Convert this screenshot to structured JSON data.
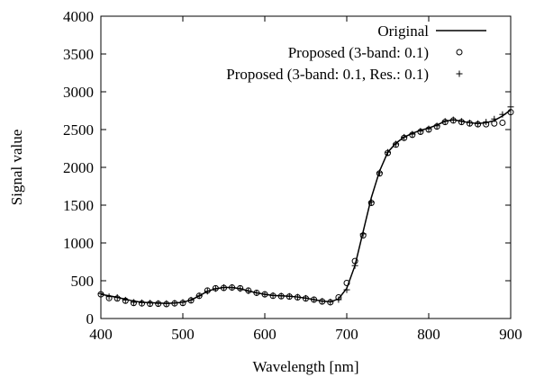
{
  "chart_data": {
    "type": "line",
    "xlabel": "Wavelength [nm]",
    "ylabel": "Signal value",
    "xlim": [
      400,
      900
    ],
    "ylim": [
      0,
      4000
    ],
    "xticks": [
      400,
      500,
      600,
      700,
      800,
      900
    ],
    "yticks": [
      0,
      500,
      1000,
      1500,
      2000,
      2500,
      3000,
      3500,
      4000
    ],
    "grid": false,
    "legend_position": "top-right",
    "series": [
      {
        "name": "Original",
        "style": "line",
        "color": "#000000",
        "x": [
          400,
          410,
          420,
          430,
          440,
          450,
          460,
          470,
          480,
          490,
          500,
          510,
          520,
          530,
          540,
          550,
          560,
          570,
          580,
          590,
          600,
          610,
          620,
          630,
          640,
          650,
          660,
          670,
          680,
          690,
          700,
          710,
          720,
          730,
          740,
          750,
          760,
          770,
          780,
          790,
          800,
          810,
          820,
          830,
          840,
          850,
          860,
          870,
          880,
          890,
          900
        ],
        "y": [
          320,
          300,
          280,
          255,
          230,
          215,
          210,
          205,
          200,
          205,
          215,
          245,
          300,
          360,
          395,
          410,
          410,
          395,
          365,
          340,
          320,
          305,
          300,
          295,
          285,
          270,
          250,
          230,
          220,
          260,
          400,
          700,
          1150,
          1600,
          1950,
          2200,
          2320,
          2400,
          2450,
          2490,
          2520,
          2560,
          2610,
          2630,
          2610,
          2590,
          2580,
          2590,
          2620,
          2680,
          2760
        ]
      },
      {
        "name": "Proposed (3-band: 0.1)",
        "style": "circle",
        "color": "#000000",
        "x": [
          400,
          410,
          420,
          430,
          440,
          450,
          460,
          470,
          480,
          490,
          500,
          510,
          520,
          530,
          540,
          550,
          560,
          570,
          580,
          590,
          600,
          610,
          620,
          630,
          640,
          650,
          660,
          670,
          680,
          690,
          700,
          710,
          720,
          730,
          740,
          750,
          760,
          770,
          780,
          790,
          800,
          810,
          820,
          830,
          840,
          850,
          860,
          870,
          880,
          890,
          900
        ],
        "y": [
          320,
          270,
          265,
          235,
          205,
          200,
          195,
          195,
          190,
          200,
          205,
          240,
          300,
          370,
          400,
          405,
          410,
          400,
          370,
          340,
          320,
          300,
          295,
          290,
          280,
          265,
          250,
          225,
          215,
          280,
          470,
          760,
          1100,
          1530,
          1920,
          2190,
          2300,
          2390,
          2430,
          2470,
          2500,
          2540,
          2600,
          2620,
          2600,
          2580,
          2570,
          2570,
          2580,
          2590,
          2730
        ]
      },
      {
        "name": "Proposed (3-band: 0.1, Res.: 0.1)",
        "style": "plus",
        "color": "#000000",
        "x": [
          400,
          410,
          420,
          430,
          440,
          450,
          460,
          470,
          480,
          490,
          500,
          510,
          520,
          530,
          540,
          550,
          560,
          570,
          580,
          590,
          600,
          610,
          620,
          630,
          640,
          650,
          660,
          670,
          680,
          690,
          700,
          710,
          720,
          730,
          740,
          750,
          760,
          770,
          780,
          790,
          800,
          810,
          820,
          830,
          840,
          850,
          860,
          870,
          880,
          890,
          900
        ],
        "y": [
          330,
          290,
          280,
          245,
          215,
          210,
          205,
          200,
          200,
          205,
          215,
          245,
          300,
          360,
          395,
          410,
          410,
          395,
          365,
          340,
          320,
          305,
          300,
          295,
          285,
          270,
          250,
          230,
          220,
          250,
          380,
          700,
          1120,
          1540,
          1930,
          2200,
          2310,
          2400,
          2440,
          2480,
          2510,
          2550,
          2610,
          2630,
          2610,
          2590,
          2580,
          2600,
          2640,
          2700,
          2800
        ]
      }
    ]
  }
}
